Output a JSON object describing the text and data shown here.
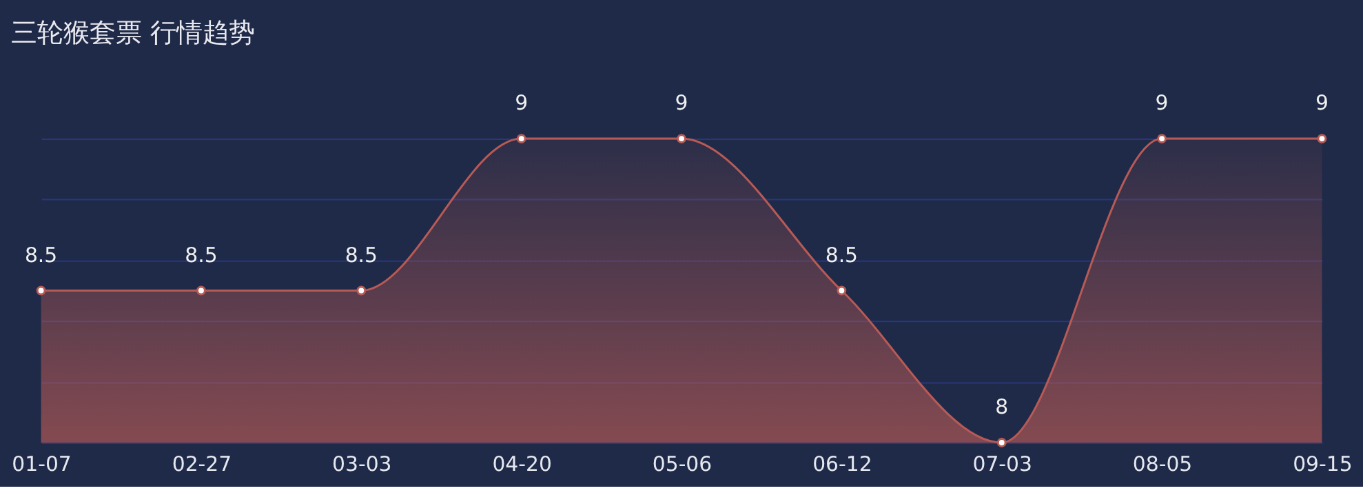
{
  "chart_data": {
    "type": "area",
    "title": "三轮猴套票 行情趋势",
    "categories": [
      "01-07",
      "02-27",
      "03-03",
      "04-20",
      "05-06",
      "06-12",
      "07-03",
      "08-05",
      "09-15"
    ],
    "values": [
      8.5,
      8.5,
      8.5,
      9,
      9,
      8.5,
      8,
      9,
      9
    ],
    "color": "#b85a55",
    "ylim": [
      8,
      9
    ],
    "yticks": [
      8,
      8.2,
      8.4,
      8.6,
      8.8,
      9
    ],
    "grid": "y",
    "tick_labels": "x",
    "data_labels": true,
    "marker": "circle"
  }
}
